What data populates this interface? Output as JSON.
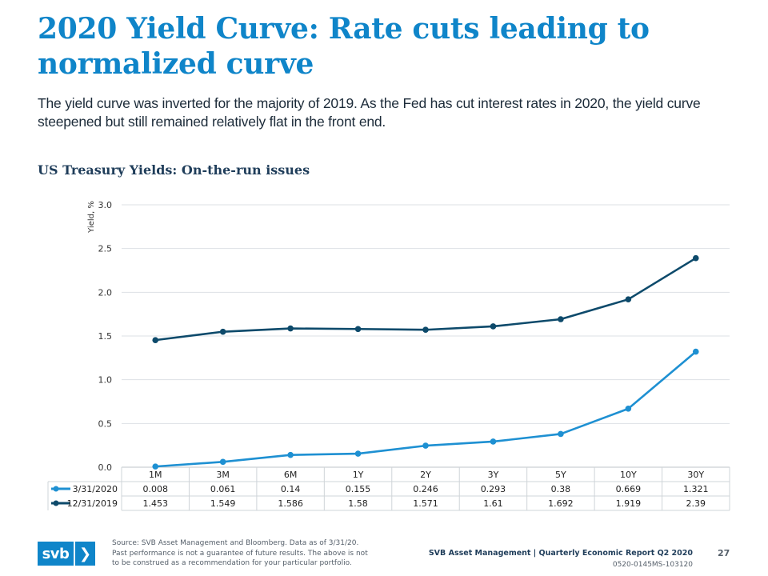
{
  "header": {
    "title": "2020 Yield Curve: Rate cuts leading to normalized curve",
    "subtitle": "The yield curve was inverted for the majority of 2019. As the Fed has cut interest rates in 2020, the yield curve steepened but still remained relatively flat in the front end."
  },
  "chart_heading": "US Treasury Yields: On-the-run issues",
  "chart_data": {
    "type": "line",
    "title": "US Treasury Yields: On-the-run issues",
    "ylabel": "Yield, %",
    "xlabel": "",
    "categories": [
      "1M",
      "3M",
      "6M",
      "1Y",
      "2Y",
      "3Y",
      "5Y",
      "10Y",
      "30Y"
    ],
    "ylim": [
      0,
      3
    ],
    "yticks": [
      "0.0",
      "0.5",
      "1.0",
      "1.5",
      "2.0",
      "2.5",
      "3.0"
    ],
    "grid": true,
    "legend": "data table below chart",
    "series": [
      {
        "name": "3/31/2020",
        "color": "#1e90d2",
        "values": [
          0.008,
          0.061,
          0.14,
          0.155,
          0.246,
          0.293,
          0.38,
          0.669,
          1.321
        ],
        "labels": [
          "0.008",
          "0.061",
          "0.14",
          "0.155",
          "0.246",
          "0.293",
          "0.38",
          "0.669",
          "1.321"
        ]
      },
      {
        "name": "12/31/2019",
        "color": "#0d4a6b",
        "values": [
          1.453,
          1.549,
          1.586,
          1.58,
          1.571,
          1.61,
          1.692,
          1.919,
          2.39
        ],
        "labels": [
          "1.453",
          "1.549",
          "1.586",
          "1.58",
          "1.571",
          "1.61",
          "1.692",
          "1.919",
          "2.39"
        ]
      }
    ]
  },
  "footer": {
    "logo_text": "svb",
    "logo_arrow": "❯",
    "source_lines": [
      "Source: SVB Asset Management and Bloomberg. Data as of 3/31/20.",
      "Past performance is not a guarantee of future results. The above is not",
      "to be construed as a recommendation for your particular portfolio."
    ],
    "report": "SVB Asset Management | Quarterly Economic Report Q2 2020",
    "code": "0520-0145MS-103120",
    "page_number": "27"
  },
  "colors": {
    "brand_blue": "#0f85c9",
    "navy": "#0d4a6b",
    "series_light": "#1e90d2"
  }
}
